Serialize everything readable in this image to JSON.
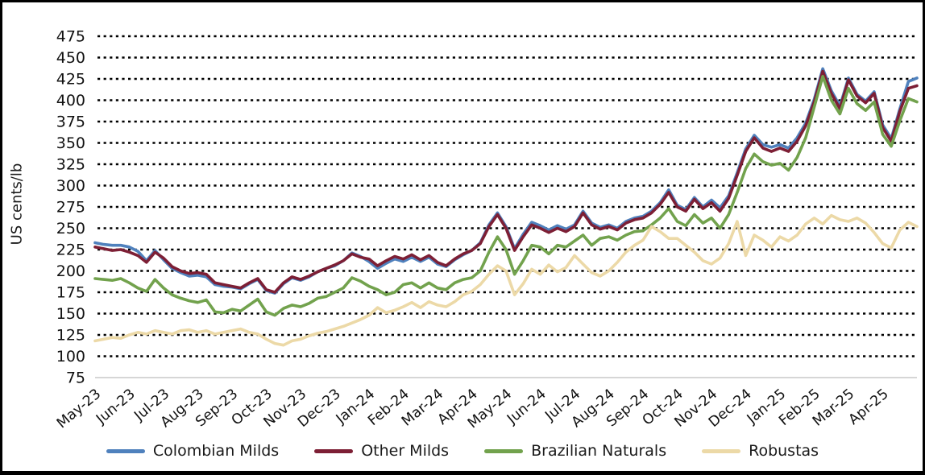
{
  "chart_data": {
    "type": "line",
    "title": "",
    "xlabel": "",
    "ylabel": "US cents/lb",
    "ylim": [
      75,
      475
    ],
    "yticks": [
      475,
      450,
      425,
      400,
      375,
      350,
      325,
      300,
      275,
      250,
      225,
      200,
      175,
      150,
      125,
      100,
      75
    ],
    "grid": "horizontal dotted black, solid light line at 75",
    "legend_position": "bottom",
    "points_per_month": 4,
    "x_tick_labels": [
      "May-23",
      "Jun-23",
      "Jul-23",
      "Aug-23",
      "Sep-23",
      "Oct-23",
      "Nov-23",
      "Dec-23",
      "Jan-24",
      "Feb-24",
      "Mar-24",
      "Apr-24",
      "May-24",
      "Jun-24",
      "Jul-24",
      "Aug-24",
      "Sep-24",
      "Oct-24",
      "Nov-24",
      "Dec-24",
      "Jan-25",
      "Feb-25",
      "Mar-25",
      "Apr-25"
    ],
    "series": [
      {
        "name": "Colombian Milds",
        "color": "#4F81BD",
        "values": [
          233,
          231,
          230,
          230,
          228,
          223,
          212,
          224,
          213,
          203,
          198,
          194,
          195,
          193,
          184,
          182,
          181,
          179,
          185,
          190,
          177,
          174,
          185,
          192,
          189,
          193,
          199,
          203,
          206,
          212,
          221,
          217,
          211,
          203,
          209,
          214,
          211,
          216,
          211,
          216,
          208,
          205,
          213,
          219,
          224,
          233,
          254,
          268,
          252,
          226,
          243,
          257,
          253,
          248,
          253,
          249,
          254,
          270,
          256,
          251,
          254,
          250,
          258,
          262,
          264,
          270,
          280,
          295,
          277,
          272,
          286,
          275,
          283,
          274,
          288,
          315,
          343,
          359,
          348,
          345,
          348,
          344,
          356,
          373,
          401,
          437,
          411,
          393,
          426,
          407,
          399,
          410,
          371,
          355,
          390,
          422,
          426
        ]
      },
      {
        "name": "Other Milds",
        "color": "#7D1F35",
        "values": [
          228,
          226,
          224,
          225,
          222,
          218,
          210,
          222,
          215,
          205,
          200,
          197,
          198,
          196,
          186,
          184,
          182,
          180,
          186,
          191,
          178,
          175,
          186,
          193,
          190,
          194,
          199,
          203,
          207,
          212,
          220,
          216,
          214,
          206,
          212,
          217,
          214,
          219,
          213,
          218,
          210,
          206,
          214,
          220,
          224,
          232,
          252,
          266,
          250,
          224,
          240,
          254,
          250,
          245,
          250,
          246,
          252,
          268,
          254,
          249,
          252,
          248,
          256,
          260,
          262,
          268,
          278,
          292,
          275,
          270,
          284,
          273,
          280,
          270,
          285,
          312,
          340,
          356,
          344,
          340,
          344,
          340,
          352,
          370,
          398,
          434,
          408,
          390,
          424,
          405,
          397,
          408,
          368,
          352,
          387,
          414,
          417
        ]
      },
      {
        "name": "Brazilian Naturals",
        "color": "#72A24D",
        "values": [
          191,
          190,
          189,
          191,
          186,
          180,
          176,
          190,
          180,
          172,
          168,
          165,
          163,
          166,
          152,
          151,
          155,
          153,
          160,
          167,
          152,
          148,
          156,
          160,
          158,
          162,
          168,
          170,
          175,
          180,
          192,
          188,
          182,
          178,
          172,
          175,
          184,
          186,
          180,
          186,
          180,
          178,
          186,
          190,
          192,
          200,
          222,
          240,
          225,
          196,
          212,
          230,
          228,
          220,
          230,
          228,
          235,
          242,
          230,
          238,
          240,
          236,
          242,
          246,
          247,
          254,
          262,
          273,
          258,
          253,
          266,
          256,
          262,
          250,
          266,
          292,
          320,
          337,
          328,
          324,
          326,
          318,
          333,
          356,
          392,
          428,
          400,
          384,
          414,
          396,
          388,
          398,
          360,
          346,
          376,
          402,
          398
        ]
      },
      {
        "name": "Robustas",
        "color": "#ECD9A7",
        "values": [
          118,
          120,
          122,
          121,
          125,
          128,
          126,
          130,
          128,
          126,
          130,
          131,
          128,
          130,
          126,
          128,
          130,
          132,
          128,
          126,
          120,
          115,
          113,
          118,
          120,
          124,
          127,
          129,
          132,
          135,
          139,
          143,
          148,
          157,
          151,
          154,
          158,
          163,
          157,
          164,
          160,
          158,
          164,
          172,
          176,
          184,
          196,
          206,
          200,
          172,
          185,
          202,
          196,
          207,
          199,
          204,
          218,
          208,
          198,
          194,
          200,
          210,
          222,
          230,
          236,
          252,
          246,
          238,
          238,
          230,
          222,
          212,
          208,
          215,
          232,
          258,
          218,
          242,
          236,
          228,
          240,
          235,
          242,
          255,
          262,
          255,
          265,
          260,
          258,
          262,
          256,
          245,
          232,
          227,
          248,
          257,
          252
        ]
      }
    ]
  }
}
